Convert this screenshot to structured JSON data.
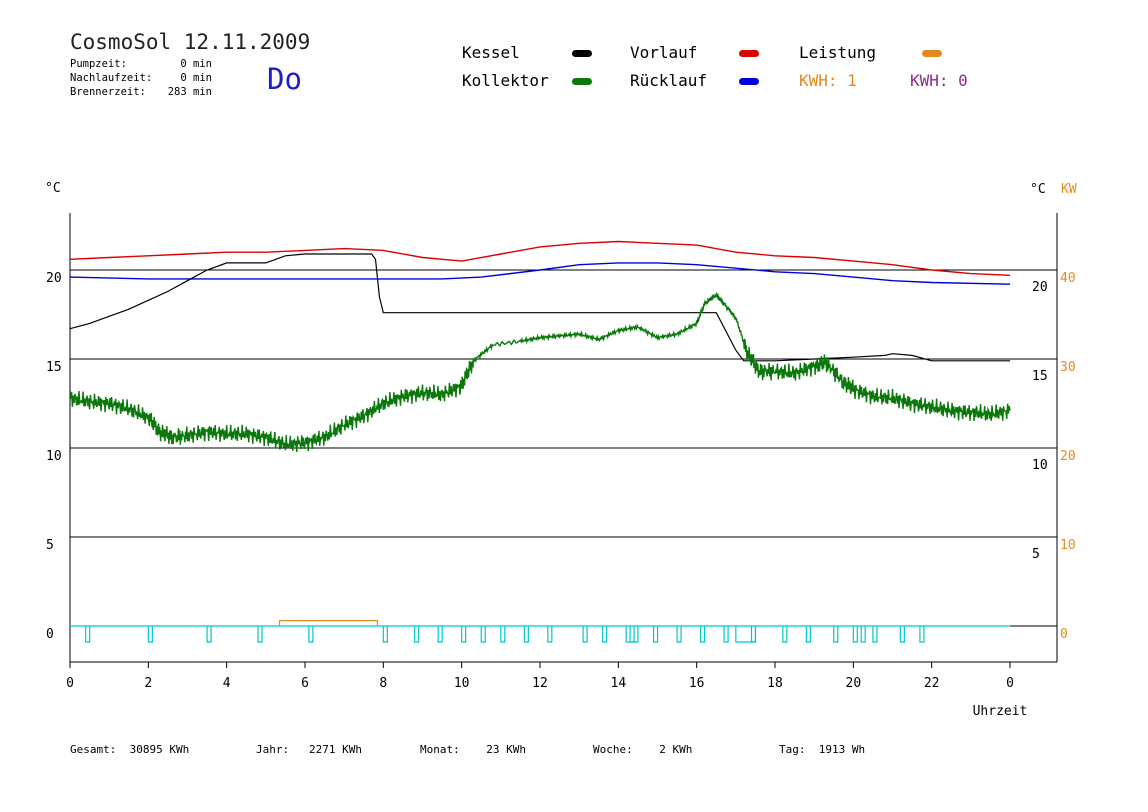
{
  "header": {
    "title": "CosmoSol 12.11.2009",
    "day": "Do",
    "stats": [
      {
        "label": "Pumpzeit:",
        "value": "0 min"
      },
      {
        "label": "Nachlaufzeit:",
        "value": "0 min"
      },
      {
        "label": "Brennerzeit:",
        "value": "283 min"
      }
    ]
  },
  "legend": {
    "kessel": "Kessel",
    "kollektor": "Kollektor",
    "vorlauf": "Vorlauf",
    "ruecklauf": "Rücklauf",
    "leistung": "Leistung",
    "kwh1": "KWH: 1",
    "kwh2": "KWH: 0"
  },
  "footer": {
    "gesamt_label": "Gesamt:",
    "gesamt_value": "30895 KWh",
    "jahr_label": "Jahr:",
    "jahr_value": "2271 KWh",
    "monat_label": "Monat:",
    "monat_value": "23 KWh",
    "woche_label": "Woche:",
    "woche_value": "2 KWh",
    "tag_label": "Tag:",
    "tag_value": "1913 Wh"
  },
  "colors": {
    "kessel": "#000000",
    "kollektor": "#0a780a",
    "vorlauf": "#dc0000",
    "ruecklauf": "#0000dc",
    "leistung": "#e48a1e",
    "pumpe": "#00c8c8",
    "kwh2": "#8c2c8c"
  },
  "chart_data": {
    "type": "line",
    "title": "",
    "xlabel": "Uhrzeit",
    "ylabel_left": "°C",
    "ylabel_right": "°C",
    "ylabel_right2": "KW",
    "x_ticks": [
      "0",
      "2",
      "4",
      "6",
      "8",
      "10",
      "12",
      "14",
      "16",
      "18",
      "20",
      "22",
      "0"
    ],
    "xlim": [
      0,
      24
    ],
    "ylim": [
      -2,
      24
    ],
    "y_ticks_left": [
      "0",
      "5",
      "10",
      "15",
      "20"
    ],
    "y_ticks_right": [
      "5",
      "10",
      "15",
      "20"
    ],
    "y_ticks_kw": [
      "0",
      "10",
      "20",
      "30",
      "40"
    ],
    "grid_y": [
      0,
      5,
      10,
      15,
      20
    ],
    "series": [
      {
        "name": "Vorlauf",
        "key": "vorlauf",
        "points": [
          [
            0,
            20.6
          ],
          [
            1,
            20.7
          ],
          [
            2,
            20.8
          ],
          [
            3,
            20.9
          ],
          [
            4,
            21.0
          ],
          [
            5,
            21.0
          ],
          [
            6,
            21.1
          ],
          [
            7,
            21.2
          ],
          [
            8,
            21.1
          ],
          [
            9,
            20.7
          ],
          [
            10,
            20.5
          ],
          [
            11,
            20.9
          ],
          [
            12,
            21.3
          ],
          [
            13,
            21.5
          ],
          [
            14,
            21.6
          ],
          [
            15,
            21.5
          ],
          [
            16,
            21.4
          ],
          [
            17,
            21.0
          ],
          [
            18,
            20.8
          ],
          [
            19,
            20.7
          ],
          [
            20,
            20.5
          ],
          [
            21,
            20.3
          ],
          [
            22,
            20.0
          ],
          [
            23,
            19.8
          ],
          [
            24,
            19.7
          ]
        ]
      },
      {
        "name": "Rücklauf",
        "key": "ruecklauf",
        "points": [
          [
            0,
            19.6
          ],
          [
            2,
            19.5
          ],
          [
            4,
            19.5
          ],
          [
            6,
            19.5
          ],
          [
            8,
            19.5
          ],
          [
            9.5,
            19.5
          ],
          [
            10.5,
            19.6
          ],
          [
            12,
            20.0
          ],
          [
            13,
            20.3
          ],
          [
            14,
            20.4
          ],
          [
            15,
            20.4
          ],
          [
            16,
            20.3
          ],
          [
            17,
            20.1
          ],
          [
            18,
            19.9
          ],
          [
            19,
            19.8
          ],
          [
            20,
            19.6
          ],
          [
            21,
            19.4
          ],
          [
            22,
            19.3
          ],
          [
            24,
            19.2
          ]
        ]
      },
      {
        "name": "Kessel",
        "key": "kessel",
        "points": [
          [
            0,
            16.7
          ],
          [
            0.5,
            17.0
          ],
          [
            1,
            17.4
          ],
          [
            1.5,
            17.8
          ],
          [
            2,
            18.3
          ],
          [
            2.5,
            18.8
          ],
          [
            3,
            19.4
          ],
          [
            3.5,
            20.0
          ],
          [
            4,
            20.4
          ],
          [
            5,
            20.4
          ],
          [
            5.5,
            20.8
          ],
          [
            6,
            20.9
          ],
          [
            7.7,
            20.9
          ],
          [
            7.8,
            20.6
          ],
          [
            7.9,
            18.5
          ],
          [
            8,
            17.6
          ],
          [
            9,
            17.6
          ],
          [
            12,
            17.6
          ],
          [
            14,
            17.6
          ],
          [
            16,
            17.6
          ],
          [
            16.5,
            17.6
          ],
          [
            17,
            15.5
          ],
          [
            17.2,
            14.9
          ],
          [
            18,
            14.9
          ],
          [
            19,
            15.0
          ],
          [
            20,
            15.1
          ],
          [
            20.8,
            15.2
          ],
          [
            21,
            15.3
          ],
          [
            21.5,
            15.2
          ],
          [
            22,
            14.9
          ],
          [
            23,
            14.9
          ],
          [
            24,
            14.9
          ]
        ]
      },
      {
        "name": "Kollektor",
        "key": "kollektor",
        "points": [
          [
            0,
            12.8
          ],
          [
            0.5,
            12.6
          ],
          [
            1,
            12.5
          ],
          [
            1.5,
            12.2
          ],
          [
            2,
            11.7
          ],
          [
            2.3,
            10.9
          ],
          [
            2.6,
            10.6
          ],
          [
            3,
            10.7
          ],
          [
            3.5,
            10.9
          ],
          [
            4,
            10.8
          ],
          [
            4.5,
            10.8
          ],
          [
            5,
            10.6
          ],
          [
            5.5,
            10.2
          ],
          [
            6,
            10.3
          ],
          [
            6.5,
            10.6
          ],
          [
            7,
            11.3
          ],
          [
            7.5,
            11.8
          ],
          [
            8,
            12.5
          ],
          [
            8.5,
            12.9
          ],
          [
            9,
            13.1
          ],
          [
            9.5,
            13.0
          ],
          [
            10,
            13.5
          ],
          [
            10.3,
            14.9
          ],
          [
            10.8,
            15.8
          ],
          [
            11.5,
            16.0
          ],
          [
            12,
            16.2
          ],
          [
            12.5,
            16.3
          ],
          [
            13,
            16.4
          ],
          [
            13.5,
            16.1
          ],
          [
            14,
            16.6
          ],
          [
            14.5,
            16.8
          ],
          [
            15,
            16.2
          ],
          [
            15.5,
            16.4
          ],
          [
            16,
            17.0
          ],
          [
            16.2,
            18.1
          ],
          [
            16.5,
            18.6
          ],
          [
            16.7,
            18.1
          ],
          [
            17,
            17.3
          ],
          [
            17.3,
            15.3
          ],
          [
            17.6,
            14.3
          ],
          [
            18,
            14.3
          ],
          [
            18.5,
            14.2
          ],
          [
            19,
            14.6
          ],
          [
            19.3,
            14.8
          ],
          [
            19.7,
            13.8
          ],
          [
            20,
            13.3
          ],
          [
            20.5,
            12.9
          ],
          [
            21,
            12.8
          ],
          [
            21.5,
            12.5
          ],
          [
            22,
            12.3
          ],
          [
            22.5,
            12.1
          ],
          [
            23,
            12.0
          ],
          [
            23.5,
            11.9
          ],
          [
            24,
            12.1
          ]
        ]
      }
    ],
    "leistung_intervals": [
      [
        5.35,
        7.85
      ]
    ],
    "leistung_level": 0.3,
    "pump_pulses": [
      0.4,
      2.0,
      3.5,
      4.8,
      6.1,
      8.0,
      8.8,
      9.4,
      10.0,
      10.5,
      11.0,
      11.6,
      12.2,
      13.1,
      13.6,
      14.3,
      14.9,
      15.5,
      16.1,
      16.7,
      17.4,
      18.2,
      18.8,
      19.5,
      20.0,
      20.2,
      20.5,
      21.2,
      21.7
    ],
    "pump_wide": [
      [
        14.2,
        14.5
      ],
      [
        17.0,
        17.5
      ]
    ]
  }
}
